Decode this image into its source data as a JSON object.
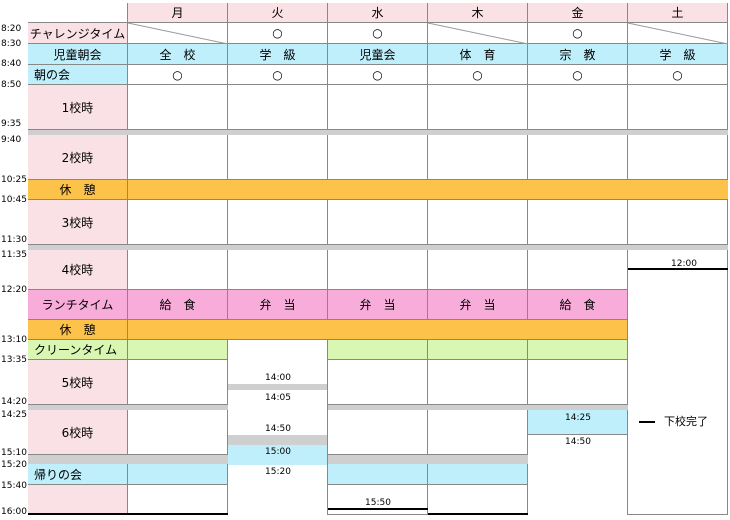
{
  "days": [
    "月",
    "火",
    "水",
    "木",
    "金",
    "土"
  ],
  "rows": {
    "challenge": "チャレンジタイム",
    "assembly": "児童朝会",
    "morning": "朝の会",
    "p1": "1校時",
    "break1": "休　憩",
    "p2": "2校時",
    "p3": "3校時",
    "p4": "4校時",
    "lunch": "ランチタイム",
    "break2": "休　憩",
    "clean": "クリーンタイム",
    "p5": "5校時",
    "p6": "6校時",
    "homeroom": "帰りの会"
  },
  "times": [
    "8:20",
    "8:30",
    "8:40",
    "8:50",
    "9:35",
    "9:40",
    "10:25",
    "10:45",
    "11:30",
    "11:35",
    "12:20",
    "13:10",
    "13:35",
    "14:20",
    "14:25",
    "15:10",
    "15:20",
    "15:40",
    "16:00"
  ],
  "challenge_marks": [
    "",
    "○",
    "○",
    "",
    "○",
    ""
  ],
  "assembly_values": [
    "全　校",
    "学　級",
    "児童会",
    "体　育",
    "宗　教",
    "学　級"
  ],
  "morning_marks": [
    "○",
    "○",
    "○",
    "○",
    "○",
    "○"
  ],
  "lunch_values": [
    "給　食",
    "弁　当",
    "弁　当",
    "弁　当",
    "給　食"
  ],
  "notes": {
    "sat_noon": "12:00",
    "tue_1400": "14:00",
    "tue_1405": "14:05",
    "tue_1450": "14:50",
    "tue_1500": "15:00",
    "tue_1520": "15:20",
    "wed_1550": "15:50",
    "fri_1425": "14:25",
    "fri_1450": "14:50",
    "sat_done": "下校完了"
  }
}
